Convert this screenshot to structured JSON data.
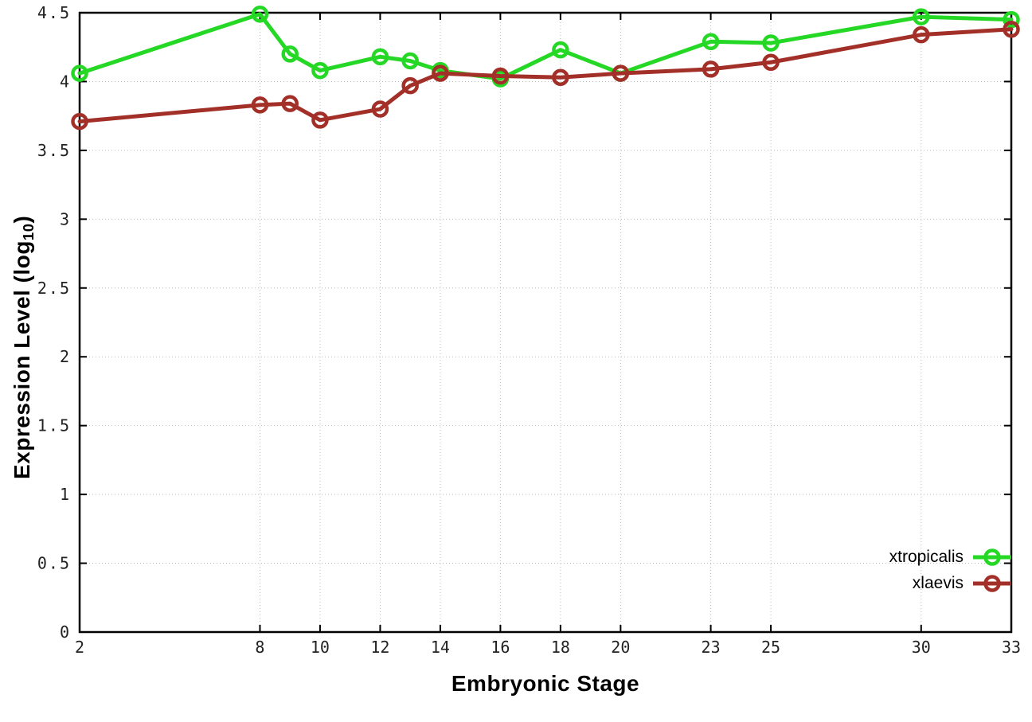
{
  "figure": {
    "background_color": "#ffffff",
    "xlabel": "Embryonic Stage",
    "ylabel_prefix": "Expression Level (log",
    "ylabel_sub": "10",
    "ylabel_suffix": ")"
  },
  "chart_data": {
    "type": "line",
    "title": "",
    "xlabel": "Embryonic Stage",
    "ylabel": "Expression Level (log10)",
    "x": [
      2,
      8,
      9,
      10,
      12,
      13,
      14,
      16,
      18,
      20,
      23,
      25,
      30,
      33
    ],
    "series": [
      {
        "name": "xtropicalis",
        "color": "#25d825",
        "values": [
          4.06,
          4.49,
          4.2,
          4.08,
          4.18,
          4.15,
          4.08,
          4.02,
          4.23,
          4.06,
          4.29,
          4.28,
          4.47,
          4.45
        ]
      },
      {
        "name": "xlaevis",
        "color": "#a33028",
        "values": [
          3.71,
          3.83,
          3.84,
          3.72,
          3.8,
          3.97,
          4.06,
          4.04,
          4.03,
          4.06,
          4.09,
          4.14,
          4.34,
          4.38
        ]
      }
    ],
    "xlim": [
      2,
      33
    ],
    "ylim": [
      0,
      4.5
    ],
    "xticks": {
      "values": [
        2,
        8,
        10,
        12,
        14,
        16,
        18,
        20,
        23,
        25,
        30,
        33
      ],
      "labels": [
        "2",
        "8",
        "10",
        "12",
        "14",
        "16",
        "18",
        "20",
        "23",
        "25",
        "30",
        "33"
      ]
    },
    "yticks": {
      "values": [
        0,
        0.5,
        1,
        1.5,
        2,
        2.5,
        3,
        3.5,
        4,
        4.5
      ],
      "labels": [
        "0",
        "0.5",
        "1",
        "1.5",
        "2",
        "2.5",
        "3",
        "3.5",
        "4",
        "4.5"
      ]
    },
    "grid": "dotted",
    "grid_color": "#bbbbbb",
    "axis_color": "#000000",
    "tick_label_color": "#222222",
    "legend_position": "inside-bottom-right",
    "marker": "open-circle"
  }
}
